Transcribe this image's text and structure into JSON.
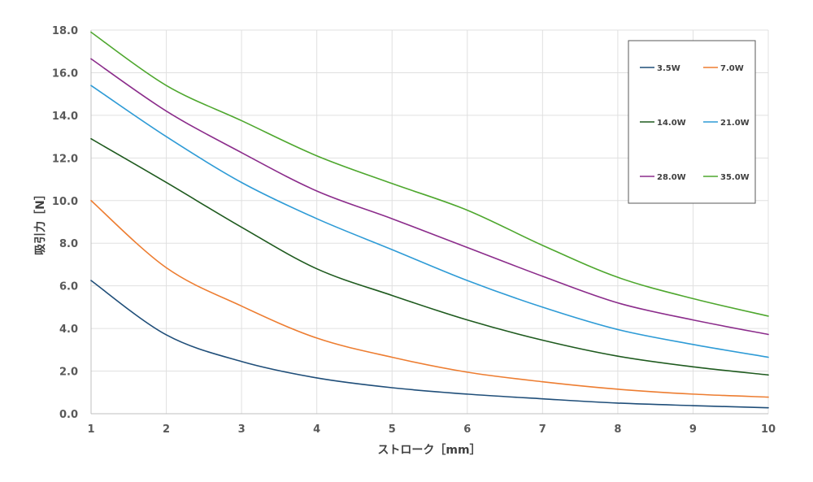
{
  "chart_data": {
    "type": "line",
    "xlabel": "ストローク［mm］",
    "ylabel": "吸引力［N］",
    "xlim": [
      1,
      10
    ],
    "ylim": [
      0,
      18
    ],
    "x_ticks": [
      "1",
      "2",
      "3",
      "4",
      "5",
      "6",
      "7",
      "8",
      "9",
      "10"
    ],
    "y_ticks": [
      "0.0",
      "2.0",
      "4.0",
      "6.0",
      "8.0",
      "10.0",
      "12.0",
      "14.0",
      "16.0",
      "18.0"
    ],
    "grid": true,
    "legend_position": "top-right",
    "x": [
      1,
      2,
      3,
      4,
      5,
      6,
      7,
      8,
      9,
      10
    ],
    "series": [
      {
        "name": "3.5W",
        "color": "#1f4e79",
        "values": [
          6.25,
          3.7,
          2.45,
          1.68,
          1.22,
          0.92,
          0.7,
          0.5,
          0.38,
          0.28
        ]
      },
      {
        "name": "7.0W",
        "color": "#ed7d31",
        "values": [
          10.0,
          6.85,
          5.05,
          3.55,
          2.65,
          1.95,
          1.5,
          1.15,
          0.92,
          0.78
        ]
      },
      {
        "name": "14.0W",
        "color": "#1e5a1e",
        "values": [
          12.9,
          10.85,
          8.75,
          6.8,
          5.55,
          4.4,
          3.45,
          2.7,
          2.2,
          1.82
        ]
      },
      {
        "name": "21.0W",
        "color": "#2e9bd6",
        "values": [
          15.4,
          13.0,
          10.85,
          9.15,
          7.7,
          6.25,
          5.0,
          3.95,
          3.25,
          2.65
        ]
      },
      {
        "name": "28.0W",
        "color": "#8b2c8b",
        "values": [
          16.65,
          14.2,
          12.25,
          10.45,
          9.15,
          7.8,
          6.45,
          5.2,
          4.4,
          3.72
        ]
      },
      {
        "name": "35.0W",
        "color": "#4ea72e",
        "values": [
          17.9,
          15.4,
          13.75,
          12.1,
          10.8,
          9.55,
          7.9,
          6.4,
          5.4,
          4.58
        ]
      }
    ]
  }
}
